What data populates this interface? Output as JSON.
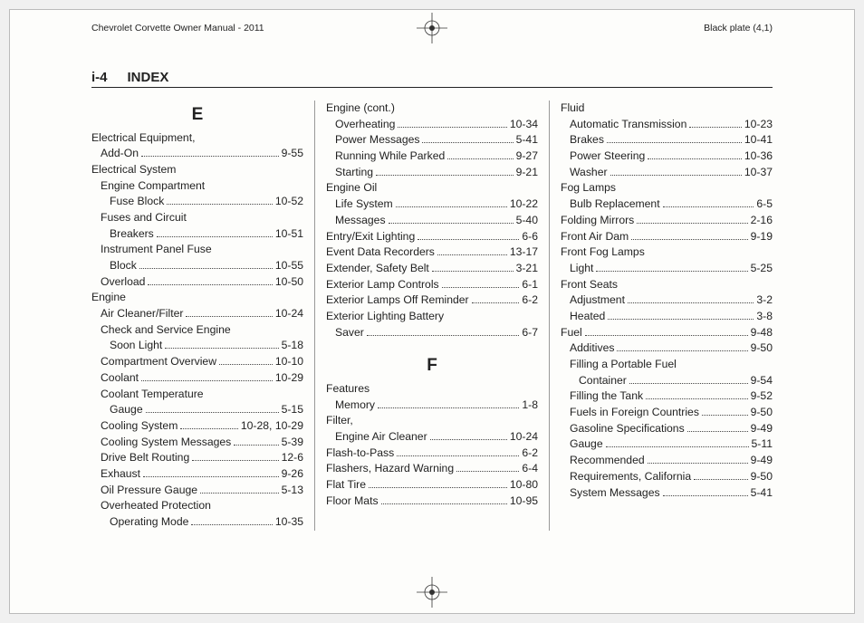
{
  "manual_title": "Chevrolet Corvette Owner Manual - 2011",
  "plate_label": "Black plate (4,1)",
  "page_number": "i-4",
  "page_title": "INDEX",
  "letters": {
    "E": "E",
    "F": "F"
  },
  "col1": [
    {
      "t": "letter",
      "key": "E"
    },
    {
      "t": "head",
      "label": "Electrical Equipment,"
    },
    {
      "t": "row",
      "indent": 1,
      "label": "Add-On",
      "page": "9-55"
    },
    {
      "t": "head",
      "label": "Electrical System"
    },
    {
      "t": "head",
      "indent": 1,
      "label": "Engine Compartment"
    },
    {
      "t": "row",
      "indent": 2,
      "label": "Fuse Block",
      "page": "10-52"
    },
    {
      "t": "head",
      "indent": 1,
      "label": "Fuses and Circuit"
    },
    {
      "t": "row",
      "indent": 2,
      "label": "Breakers",
      "page": "10-51"
    },
    {
      "t": "head",
      "indent": 1,
      "label": "Instrument Panel Fuse"
    },
    {
      "t": "row",
      "indent": 2,
      "label": "Block",
      "page": "10-55"
    },
    {
      "t": "row",
      "indent": 1,
      "label": "Overload",
      "page": "10-50"
    },
    {
      "t": "head",
      "label": "Engine"
    },
    {
      "t": "row",
      "indent": 1,
      "label": "Air Cleaner/Filter",
      "page": "10-24"
    },
    {
      "t": "head",
      "indent": 1,
      "label": "Check and Service Engine"
    },
    {
      "t": "row",
      "indent": 2,
      "label": "Soon Light",
      "page": "5-18"
    },
    {
      "t": "row",
      "indent": 1,
      "label": "Compartment Overview",
      "page": "10-10"
    },
    {
      "t": "row",
      "indent": 1,
      "label": "Coolant",
      "page": "10-29"
    },
    {
      "t": "head",
      "indent": 1,
      "label": "Coolant Temperature"
    },
    {
      "t": "row",
      "indent": 2,
      "label": "Gauge",
      "page": "5-15"
    },
    {
      "t": "row",
      "indent": 1,
      "label": "Cooling System",
      "page": "10-28, 10-29"
    },
    {
      "t": "row",
      "indent": 1,
      "label": "Cooling System Messages",
      "page": "5-39"
    },
    {
      "t": "row",
      "indent": 1,
      "label": "Drive Belt Routing",
      "page": "12-6"
    },
    {
      "t": "row",
      "indent": 1,
      "label": "Exhaust",
      "page": "9-26"
    },
    {
      "t": "row",
      "indent": 1,
      "label": "Oil Pressure Gauge",
      "page": "5-13"
    },
    {
      "t": "head",
      "indent": 1,
      "label": "Overheated Protection"
    },
    {
      "t": "row",
      "indent": 2,
      "label": "Operating Mode",
      "page": "10-35"
    }
  ],
  "col2": [
    {
      "t": "head",
      "label": "Engine (cont.)"
    },
    {
      "t": "row",
      "indent": 1,
      "label": "Overheating",
      "page": "10-34"
    },
    {
      "t": "row",
      "indent": 1,
      "label": "Power Messages",
      "page": "5-41"
    },
    {
      "t": "row",
      "indent": 1,
      "label": "Running While Parked",
      "page": "9-27"
    },
    {
      "t": "row",
      "indent": 1,
      "label": "Starting",
      "page": "9-21"
    },
    {
      "t": "head",
      "label": "Engine Oil"
    },
    {
      "t": "row",
      "indent": 1,
      "label": "Life System",
      "page": "10-22"
    },
    {
      "t": "row",
      "indent": 1,
      "label": "Messages",
      "page": "5-40"
    },
    {
      "t": "row",
      "label": "Entry/Exit Lighting",
      "page": "6-6"
    },
    {
      "t": "row",
      "label": "Event Data Recorders",
      "page": "13-17"
    },
    {
      "t": "row",
      "label": "Extender, Safety Belt",
      "page": "3-21"
    },
    {
      "t": "row",
      "label": "Exterior Lamp Controls",
      "page": "6-1"
    },
    {
      "t": "row",
      "label": "Exterior Lamps Off Reminder",
      "page": "6-2"
    },
    {
      "t": "head",
      "label": "Exterior Lighting Battery"
    },
    {
      "t": "row",
      "indent": 1,
      "label": "Saver",
      "page": "6-7"
    },
    {
      "t": "spacer"
    },
    {
      "t": "letter",
      "key": "F"
    },
    {
      "t": "head",
      "label": "Features"
    },
    {
      "t": "row",
      "indent": 1,
      "label": "Memory",
      "page": "1-8"
    },
    {
      "t": "head",
      "label": "Filter,"
    },
    {
      "t": "row",
      "indent": 1,
      "label": "Engine Air Cleaner",
      "page": "10-24"
    },
    {
      "t": "row",
      "label": "Flash-to-Pass",
      "page": "6-2"
    },
    {
      "t": "row",
      "label": "Flashers, Hazard Warning",
      "page": "6-4"
    },
    {
      "t": "row",
      "label": "Flat Tire",
      "page": "10-80"
    },
    {
      "t": "row",
      "label": "Floor Mats",
      "page": "10-95"
    }
  ],
  "col3": [
    {
      "t": "head",
      "label": "Fluid"
    },
    {
      "t": "row",
      "indent": 1,
      "label": "Automatic Transmission",
      "page": "10-23"
    },
    {
      "t": "row",
      "indent": 1,
      "label": "Brakes",
      "page": "10-41"
    },
    {
      "t": "row",
      "indent": 1,
      "label": "Power Steering",
      "page": "10-36"
    },
    {
      "t": "row",
      "indent": 1,
      "label": "Washer",
      "page": "10-37"
    },
    {
      "t": "head",
      "label": "Fog Lamps"
    },
    {
      "t": "row",
      "indent": 1,
      "label": "Bulb Replacement",
      "page": "6-5"
    },
    {
      "t": "row",
      "label": "Folding Mirrors",
      "page": "2-16"
    },
    {
      "t": "row",
      "label": "Front Air Dam",
      "page": "9-19"
    },
    {
      "t": "head",
      "label": "Front Fog Lamps"
    },
    {
      "t": "row",
      "indent": 1,
      "label": "Light",
      "page": "5-25"
    },
    {
      "t": "head",
      "label": "Front Seats"
    },
    {
      "t": "row",
      "indent": 1,
      "label": "Adjustment",
      "page": "3-2"
    },
    {
      "t": "row",
      "indent": 1,
      "label": "Heated",
      "page": "3-8"
    },
    {
      "t": "row",
      "label": "Fuel",
      "page": "9-48"
    },
    {
      "t": "row",
      "indent": 1,
      "label": "Additives",
      "page": "9-50"
    },
    {
      "t": "head",
      "indent": 1,
      "label": "Filling a Portable Fuel"
    },
    {
      "t": "row",
      "indent": 2,
      "label": "Container",
      "page": "9-54"
    },
    {
      "t": "row",
      "indent": 1,
      "label": "Filling the Tank",
      "page": "9-52"
    },
    {
      "t": "row",
      "indent": 1,
      "label": "Fuels in Foreign Countries",
      "page": "9-50"
    },
    {
      "t": "row",
      "indent": 1,
      "label": "Gasoline Specifications",
      "page": "9-49"
    },
    {
      "t": "row",
      "indent": 1,
      "label": "Gauge",
      "page": "5-11"
    },
    {
      "t": "row",
      "indent": 1,
      "label": "Recommended",
      "page": "9-49"
    },
    {
      "t": "row",
      "indent": 1,
      "label": "Requirements, California",
      "page": "9-50"
    },
    {
      "t": "row",
      "indent": 1,
      "label": "System Messages",
      "page": "5-41"
    }
  ]
}
